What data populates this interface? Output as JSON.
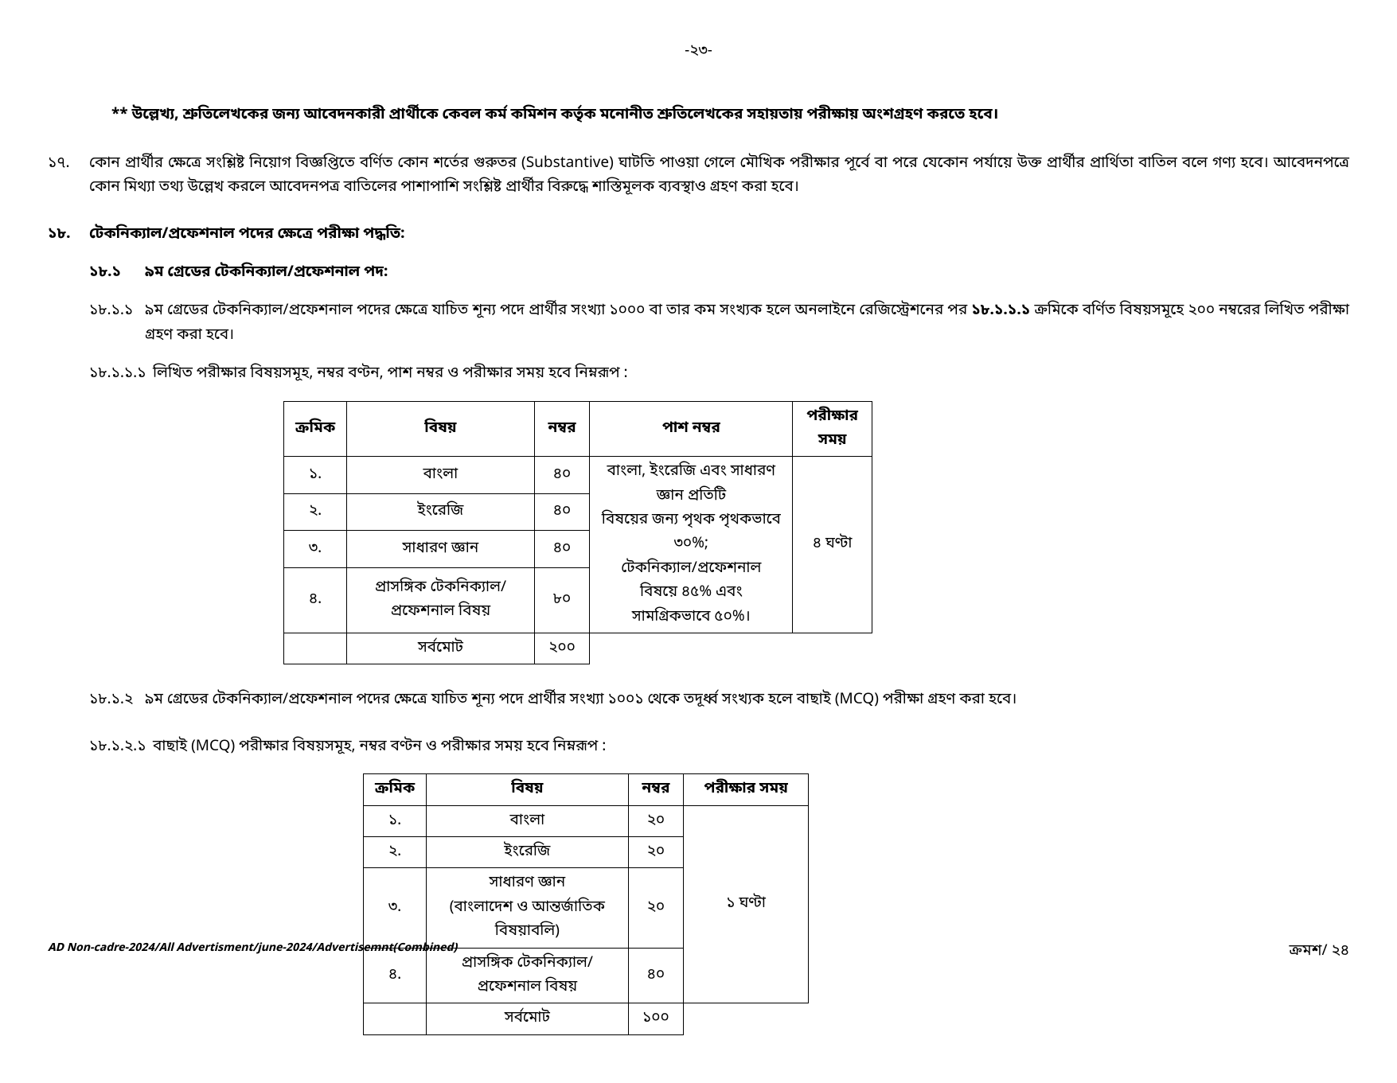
{
  "page_number": "-২৩-",
  "note_star": "** উল্লেখ্য, শ্রুতিলেখকের জন্য আবেদনকারী প্রার্থীকে কেবল কর্ম কমিশন কর্তৃক মনোনীত শ্রুতিলেখকের সহায়তায় পরীক্ষায় অংশগ্রহণ করতে হবে।",
  "c17": {
    "num": "১৭.",
    "text": "কোন প্রার্থীর ক্ষেত্রে সংশ্লিষ্ট নিয়োগ বিজ্ঞপ্তিতে বর্ণিত কোন শর্তের গুরুতর (Substantive) ঘাটতি পাওয়া গেলে মৌখিক পরীক্ষার পূর্বে বা পরে যেকোন পর্যায়ে উক্ত প্রার্থীর প্রার্থিতা বাতিল বলে গণ্য  হবে। আবেদনপত্রে কোন মিথ্যা তথ্য উল্লেখ করলে আবেদনপত্র বাতিলের পাশাপাশি সংশ্লিষ্ট প্রার্থীর বিরুদ্ধে শাস্তিমূলক ব্যবস্থাও গ্রহণ করা হবে।"
  },
  "c18": {
    "num": "১৮.",
    "title": "টেকনিক্যাল/প্রফেশনাল পদের ক্ষেত্রে পরীক্ষা পদ্ধতি:",
    "s1": {
      "num": "১৮.১",
      "title": "৯ম গ্রেডের টেকনিক্যাল/প্রফেশনাল পদ:"
    },
    "s11": {
      "num": "১৮.১.১",
      "text_a": "৯ম গ্রেডের টেকনিক্যাল/প্রফেশনাল পদের ক্ষেত্রে যাচিত শূন্য পদে প্রার্থীর সংখ্যা ১০০০ বা তার কম সংখ্যক হলে অনলাইনে রেজিস্ট্রেশনের পর ",
      "bold": "১৮.১.১.১",
      "text_b": " ক্রমিকে বর্ণিত বিষয়সমূহে ২০০ নম্বরের লিখিত পরীক্ষা গ্রহণ করা হবে।"
    },
    "s111": {
      "num": "১৮.১.১.১",
      "text": "লিখিত পরীক্ষার বিষয়সমূহ, নম্বর বণ্টন, পাশ নম্বর ও পরীক্ষার সময় হবে নিম্নরূপ :"
    },
    "s12": {
      "num": "১৮.১.২",
      "text": "৯ম গ্রেডের টেকনিক্যাল/প্রফেশনাল পদের ক্ষেত্রে যাচিত শূন্য পদে প্রার্থীর সংখ্যা ১০০১ থেকে তদূর্ধ্ব সংখ্যক হলে বাছাই (MCQ) পরীক্ষা গ্রহণ করা হবে।"
    },
    "s121": {
      "num": "১৮.১.২.১",
      "text": "বাছাই (MCQ) পরীক্ষার বিষয়সমূহ, নম্বর বণ্টন ও পরীক্ষার সময় হবে নিম্নরূপ :"
    }
  },
  "table1": {
    "headers": {
      "sl": "ক্রমিক",
      "subject": "বিষয়",
      "marks": "নম্বর",
      "pass": "পাশ নম্বর",
      "time": "পরীক্ষার সময়"
    },
    "rows": [
      {
        "sl": "১.",
        "subject": "বাংলা",
        "marks": "৪০"
      },
      {
        "sl": "২.",
        "subject": "ইংরেজি",
        "marks": "৪০"
      },
      {
        "sl": "৩.",
        "subject": "সাধারণ জ্ঞান",
        "marks": "৪০"
      },
      {
        "sl": "৪.",
        "subject": "প্রাসঙ্গিক টেকনিক্যাল/প্রফেশনাল বিষয়",
        "marks": "৮০"
      }
    ],
    "pass_line1": "বাংলা, ইংরেজি এবং সাধারণ জ্ঞান প্রতিটি",
    "pass_line2": "বিষয়ের জন্য পৃথক পৃথকভাবে ৩০%;",
    "pass_line3": "টেকনিক্যাল/প্রফেশনাল বিষয়ে ৪৫% এবং",
    "pass_line4": "সামগ্রিকভাবে ৫০%।",
    "time": "৪ ঘণ্টা",
    "total_label": "সর্বমোট",
    "total_marks": "২০০"
  },
  "table2": {
    "headers": {
      "sl": "ক্রমিক",
      "subject": "বিষয়",
      "marks": "নম্বর",
      "time": "পরীক্ষার সময়"
    },
    "rows": [
      {
        "sl": "১.",
        "subject": "বাংলা",
        "marks": "২০"
      },
      {
        "sl": "২.",
        "subject": "ইংরেজি",
        "marks": "২০"
      },
      {
        "sl": "৩.",
        "subject_l1": "সাধারণ জ্ঞান",
        "subject_l2": "(বাংলাদেশ ও আন্তর্জাতিক বিষয়াবলি)",
        "marks": "২০"
      },
      {
        "sl": "৪.",
        "subject": "প্রাসঙ্গিক টেকনিক্যাল/প্রফেশনাল বিষয়",
        "marks": "৪০"
      }
    ],
    "time": "১ ঘণ্টা",
    "total_label": "সর্বমোট",
    "total_marks": "১০০"
  },
  "footer_left": "AD Non-cadre-2024/All Advertisment/june-2024/Advertisemnt(Combined)",
  "footer_right": "ক্রমশ/ ২৪"
}
